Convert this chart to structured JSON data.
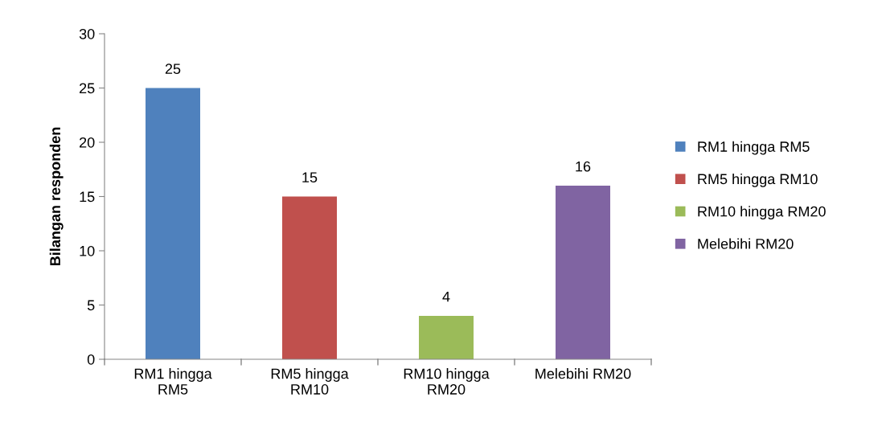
{
  "chart_data": {
    "type": "bar",
    "ylabel": "Bilangan responden",
    "categories": [
      "RM1 hingga RM5",
      "RM5 hingga RM10",
      "RM10 hingga RM20",
      "Melebihi RM20"
    ],
    "series": [
      {
        "name": "RM1 hingga RM5",
        "color": "#4f81bd",
        "values": [
          25,
          null,
          null,
          null
        ]
      },
      {
        "name": "RM5 hingga RM10",
        "color": "#c0504d",
        "values": [
          null,
          15,
          null,
          null
        ]
      },
      {
        "name": "RM10 hingga RM20",
        "color": "#9bbb59",
        "values": [
          null,
          null,
          4,
          null
        ]
      },
      {
        "name": "Melebihi RM20",
        "color": "#8064a2",
        "values": [
          null,
          null,
          null,
          16
        ]
      }
    ],
    "ylim": [
      0,
      30
    ],
    "yticks": [
      0,
      5,
      10,
      15,
      20,
      25,
      30
    ],
    "data_labels": true,
    "legend": "right",
    "grid": false
  }
}
